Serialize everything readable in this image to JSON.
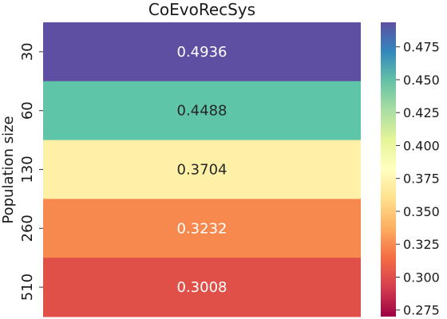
{
  "chart_data": {
    "type": "heatmap",
    "title": "CoEvoRecSys",
    "ylabel": "Population size",
    "xlabel": "",
    "rows": [
      "30",
      "60",
      "130",
      "260",
      "510"
    ],
    "values": [
      0.4936,
      0.4488,
      0.3704,
      0.3232,
      0.3008
    ],
    "value_labels": [
      "0.4936",
      "0.4488",
      "0.3704",
      "0.3232",
      "0.3008"
    ],
    "cell_colors": [
      "#5e4fa2",
      "#5fc5a8",
      "#fef0a6",
      "#f7894f",
      "#e05048"
    ],
    "cell_text_colors": [
      "#ffffff",
      "#262626",
      "#262626",
      "#ffffff",
      "#ffffff"
    ],
    "colormap": "Spectral",
    "colorbar": {
      "min": 0.27,
      "max": 0.4936,
      "ticks": [
        0.275,
        0.3,
        0.325,
        0.35,
        0.375,
        0.4,
        0.425,
        0.45,
        0.475
      ],
      "tick_labels": [
        "0.275",
        "0.300",
        "0.325",
        "0.350",
        "0.375",
        "0.400",
        "0.425",
        "0.450",
        "0.475"
      ]
    }
  }
}
